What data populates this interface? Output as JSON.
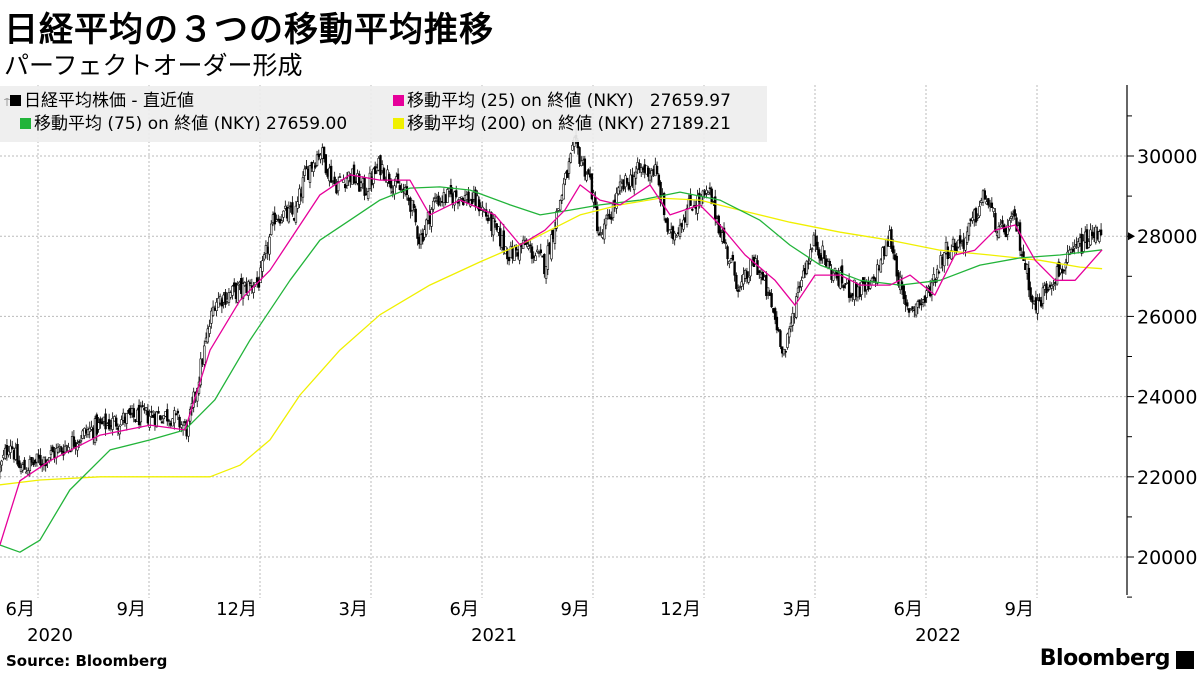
{
  "title": "日経平均の３つの移動平均推移",
  "subtitle": "パーフェクトオーダー形成",
  "source": "Source:  Bloomberg",
  "logo": "Bloomberg",
  "legend": [
    {
      "label": "日経平均株価 - 直近値",
      "value": "",
      "color": "#000000"
    },
    {
      "label": "移動平均 (25)  on 終値 (NKY)",
      "value": "27659.97",
      "color": "#e6009a"
    },
    {
      "label": "移動平均 (75)  on 終値 (NKY)",
      "value": "27659.00",
      "color": "#22b43a"
    },
    {
      "label": "移動平均 (200)  on 終値 (NKY)",
      "value": "27189.21",
      "color": "#f0f000"
    }
  ],
  "chart_data": {
    "type": "line",
    "title": "日経平均の３つの移動平均推移",
    "subtitle": "パーフェクトオーダー形成",
    "x_unit": "months since 2020-06-01",
    "xlim": [
      -1.03,
      28.76
    ],
    "ylim": [
      19100,
      31800
    ],
    "grid": true,
    "legend_position": "top-left",
    "y_ticks": [
      20000,
      22000,
      24000,
      26000,
      28000,
      30000
    ],
    "x_ticks": [
      {
        "m": 0,
        "label": "6月",
        "year": "2020"
      },
      {
        "m": 3,
        "label": "9月",
        "year": ""
      },
      {
        "m": 6,
        "label": "12月",
        "year": ""
      },
      {
        "m": 9,
        "label": "3月",
        "year": ""
      },
      {
        "m": 12,
        "label": "6月",
        "year": "2021"
      },
      {
        "m": 15,
        "label": "9月",
        "year": ""
      },
      {
        "m": 18,
        "label": "12月",
        "year": ""
      },
      {
        "m": 21,
        "label": "3月",
        "year": ""
      },
      {
        "m": 24,
        "label": "6月",
        "year": "2022"
      },
      {
        "m": 27,
        "label": "9月",
        "year": ""
      }
    ],
    "last_value_marker": 28000,
    "series": [
      {
        "name": "日経平均株価",
        "kind": "candlestick",
        "color": "#000000",
        "points": [
          [
            -1.03,
            22170
          ],
          [
            -0.76,
            22920
          ],
          [
            -0.49,
            22170
          ],
          [
            0.05,
            22400
          ],
          [
            0.59,
            22670
          ],
          [
            1.41,
            23170
          ],
          [
            2.22,
            23420
          ],
          [
            3.03,
            23540
          ],
          [
            3.57,
            23540
          ],
          [
            4.05,
            23170
          ],
          [
            4.38,
            24660
          ],
          [
            4.78,
            26400
          ],
          [
            5.46,
            26660
          ],
          [
            6.0,
            26900
          ],
          [
            6.41,
            28530
          ],
          [
            6.95,
            28530
          ],
          [
            7.22,
            29530
          ],
          [
            7.62,
            30150
          ],
          [
            8.03,
            29280
          ],
          [
            8.43,
            29530
          ],
          [
            8.84,
            29150
          ],
          [
            9.24,
            29780
          ],
          [
            9.65,
            29280
          ],
          [
            10.05,
            28900
          ],
          [
            10.32,
            27900
          ],
          [
            10.73,
            28900
          ],
          [
            11.41,
            29030
          ],
          [
            11.95,
            28780
          ],
          [
            12.35,
            28150
          ],
          [
            12.76,
            27530
          ],
          [
            13.16,
            27780
          ],
          [
            13.7,
            27280
          ],
          [
            14.11,
            28900
          ],
          [
            14.51,
            30270
          ],
          [
            14.92,
            29400
          ],
          [
            15.19,
            27900
          ],
          [
            15.73,
            29150
          ],
          [
            16.27,
            29650
          ],
          [
            16.68,
            29650
          ],
          [
            17.08,
            27900
          ],
          [
            17.62,
            28780
          ],
          [
            18.16,
            29030
          ],
          [
            18.57,
            27780
          ],
          [
            18.97,
            26660
          ],
          [
            19.38,
            27400
          ],
          [
            19.78,
            26400
          ],
          [
            20.19,
            25040
          ],
          [
            20.59,
            26900
          ],
          [
            21.0,
            27900
          ],
          [
            21.41,
            27150
          ],
          [
            21.95,
            26660
          ],
          [
            22.49,
            26660
          ],
          [
            23.03,
            28030
          ],
          [
            23.43,
            26160
          ],
          [
            23.97,
            26400
          ],
          [
            24.51,
            27650
          ],
          [
            25.05,
            27900
          ],
          [
            25.59,
            29030
          ],
          [
            26.0,
            28030
          ],
          [
            26.41,
            28400
          ],
          [
            26.95,
            26160
          ],
          [
            27.35,
            26900
          ],
          [
            27.76,
            27280
          ],
          [
            28.16,
            27780
          ],
          [
            28.57,
            28030
          ],
          [
            28.76,
            28280
          ]
        ]
      },
      {
        "name": "移動平均 (25)",
        "kind": "line",
        "color": "#e6009a",
        "points": [
          [
            -1.03,
            20300
          ],
          [
            -0.49,
            21900
          ],
          [
            0.32,
            22400
          ],
          [
            1.68,
            23040
          ],
          [
            3.03,
            23290
          ],
          [
            3.97,
            23170
          ],
          [
            4.65,
            25160
          ],
          [
            5.46,
            26400
          ],
          [
            6.27,
            27150
          ],
          [
            7.08,
            28280
          ],
          [
            7.62,
            29030
          ],
          [
            8.43,
            29530
          ],
          [
            9.24,
            29400
          ],
          [
            10.05,
            29400
          ],
          [
            10.59,
            28530
          ],
          [
            11.41,
            28900
          ],
          [
            12.35,
            28530
          ],
          [
            13.03,
            27780
          ],
          [
            13.7,
            28150
          ],
          [
            14.24,
            28650
          ],
          [
            14.65,
            29280
          ],
          [
            15.19,
            28900
          ],
          [
            15.73,
            28780
          ],
          [
            16.54,
            29280
          ],
          [
            17.08,
            28530
          ],
          [
            17.89,
            28780
          ],
          [
            18.43,
            28280
          ],
          [
            19.11,
            27530
          ],
          [
            19.92,
            26900
          ],
          [
            20.46,
            26280
          ],
          [
            21.0,
            27030
          ],
          [
            21.68,
            27030
          ],
          [
            22.22,
            26780
          ],
          [
            23.03,
            26780
          ],
          [
            23.57,
            27030
          ],
          [
            24.24,
            26530
          ],
          [
            24.78,
            27530
          ],
          [
            25.32,
            27650
          ],
          [
            25.86,
            28150
          ],
          [
            26.41,
            28280
          ],
          [
            26.95,
            27400
          ],
          [
            27.49,
            26900
          ],
          [
            28.03,
            26900
          ],
          [
            28.76,
            27660
          ]
        ]
      },
      {
        "name": "移動平均 (75)",
        "kind": "line",
        "color": "#22b43a",
        "points": [
          [
            -1.03,
            20300
          ],
          [
            -0.49,
            20120
          ],
          [
            0.05,
            20420
          ],
          [
            0.86,
            21670
          ],
          [
            1.95,
            22670
          ],
          [
            3.03,
            22920
          ],
          [
            3.97,
            23170
          ],
          [
            4.78,
            23920
          ],
          [
            5.73,
            25410
          ],
          [
            6.81,
            26900
          ],
          [
            7.62,
            27900
          ],
          [
            8.43,
            28400
          ],
          [
            9.24,
            28900
          ],
          [
            10.05,
            29200
          ],
          [
            10.86,
            29230
          ],
          [
            11.68,
            29150
          ],
          [
            12.76,
            28780
          ],
          [
            13.57,
            28530
          ],
          [
            14.38,
            28650
          ],
          [
            15.19,
            28780
          ],
          [
            16.27,
            28900
          ],
          [
            17.35,
            29100
          ],
          [
            18.43,
            28900
          ],
          [
            19.51,
            28400
          ],
          [
            20.32,
            27780
          ],
          [
            21.14,
            27280
          ],
          [
            22.22,
            26900
          ],
          [
            23.3,
            26780
          ],
          [
            24.38,
            26900
          ],
          [
            25.46,
            27280
          ],
          [
            26.54,
            27460
          ],
          [
            27.62,
            27530
          ],
          [
            28.76,
            27660
          ]
        ]
      },
      {
        "name": "移動平均 (200)",
        "kind": "line",
        "color": "#f0f000",
        "points": [
          [
            -1.03,
            21800
          ],
          [
            0.05,
            21920
          ],
          [
            1.68,
            22000
          ],
          [
            4.65,
            22000
          ],
          [
            5.46,
            22290
          ],
          [
            6.27,
            22920
          ],
          [
            7.08,
            24040
          ],
          [
            8.16,
            25160
          ],
          [
            9.24,
            26040
          ],
          [
            10.59,
            26780
          ],
          [
            11.95,
            27360
          ],
          [
            13.3,
            27900
          ],
          [
            14.65,
            28530
          ],
          [
            15.73,
            28780
          ],
          [
            16.81,
            28950
          ],
          [
            17.89,
            28900
          ],
          [
            18.97,
            28650
          ],
          [
            20.32,
            28350
          ],
          [
            21.68,
            28100
          ],
          [
            23.03,
            27900
          ],
          [
            24.38,
            27650
          ],
          [
            25.73,
            27530
          ],
          [
            27.08,
            27400
          ],
          [
            28.16,
            27230
          ],
          [
            28.76,
            27190
          ]
        ]
      }
    ]
  }
}
